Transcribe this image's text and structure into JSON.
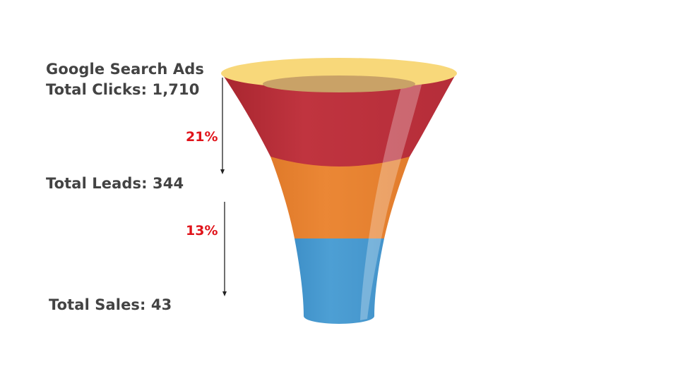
{
  "stages": {
    "campaign_title": "Google Search Ads",
    "clicks_label": "Total Clicks: 1,710",
    "leads_label": "Total Leads: 344",
    "sales_label": "Total Sales: 43"
  },
  "conversion_rates": {
    "clicks_to_leads": "21%",
    "leads_to_sales": "13%"
  },
  "colors": {
    "rim": "#f8d87a",
    "rim_inner": "#c9a267",
    "top_band": "#bc3340",
    "middle_band": "#e98433",
    "bottom_band": "#4a9bd0",
    "text": "#434343",
    "percent": "#e0131a"
  }
}
